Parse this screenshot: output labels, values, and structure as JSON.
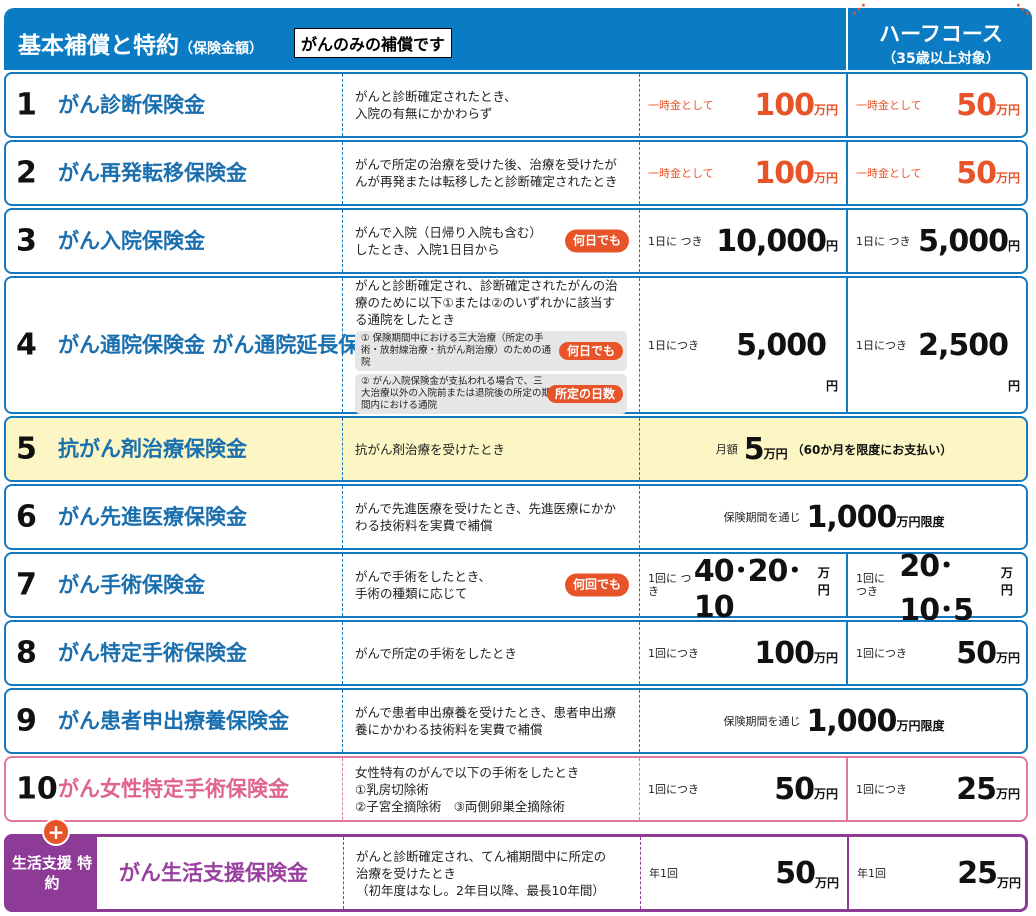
{
  "header": {
    "title": "基本補償と特約",
    "title_sub": "（保険金額）",
    "note": "がんのみの補償です",
    "half_title": "ハーフコース",
    "half_sub": "（35歳以上対象）"
  },
  "colors": {
    "header": "#0b7cc3",
    "accent": "#e8542a",
    "pink": "#e07a9c",
    "purple": "#8e3a97"
  },
  "rows": [
    {
      "num": "1",
      "name": "がん診断保険金",
      "desc": [
        "がんと診断確定されたとき、",
        "入院の有無にかかわらず"
      ],
      "orange": true,
      "c1": {
        "pre": "一時金として",
        "val": "100",
        "unit": "万円"
      },
      "c2": {
        "pre": "一時金として",
        "val": "50",
        "unit": "万円"
      }
    },
    {
      "num": "2",
      "name": "がん再発転移保険金",
      "desc": [
        "がんで所定の治療を受けた後、治療を受けたがんが再発または転移したと診断確定されたとき"
      ],
      "orange": true,
      "c1": {
        "pre": "一時金として",
        "val": "100",
        "unit": "万円"
      },
      "c2": {
        "pre": "一時金として",
        "val": "50",
        "unit": "万円"
      }
    },
    {
      "num": "3",
      "name": "がん入院保険金",
      "desc": [
        "がんで入院（日帰り入院も含む）",
        "したとき、入院1日目から"
      ],
      "badge": "何日でも",
      "c1": {
        "pre": "1日に つき",
        "val": "10,000",
        "unit": "円"
      },
      "c2": {
        "pre": "1日に つき",
        "val": "5,000",
        "unit": "円"
      }
    },
    {
      "num": "4",
      "name": "がん通院保険金 がん通院延長保険金",
      "desc": [
        "がんと診断確定され、診断確定されたがんの治療のために以下①または②のいずれかに該当する通院をしたとき"
      ],
      "subs": [
        {
          "text": "① 保険期間中における三大治療（所定の手術・放射線治療・抗がん剤治療）のための通院",
          "badge": "何日でも"
        },
        {
          "text": "② がん入院保険金が支払われる場合で、三大治療以外の入院前または退院後の所定の期間内における通院",
          "badge": "所定の日数"
        }
      ],
      "c1": {
        "pre": "1日につき",
        "val": "5,000",
        "unit": "円"
      },
      "c2": {
        "pre": "1日につき",
        "val": "2,500",
        "unit": "円"
      }
    },
    {
      "num": "5",
      "name": "抗がん剤治療保険金",
      "desc": [
        "抗がん剤治療を受けたとき"
      ],
      "style": "yellow",
      "cm": {
        "pre": "月額",
        "val": "5",
        "unit": "万円",
        "suf": "（60か月を限度にお支払い）"
      }
    },
    {
      "num": "6",
      "name": "がん先進医療保険金",
      "desc": [
        "がんで先進医療を受けたとき、先進医療にかかわる技術料を実費で補償"
      ],
      "cm": {
        "pre": "保険期間を通じ",
        "val": "1,000",
        "unit": "万円限度"
      }
    },
    {
      "num": "7",
      "name": "がん手術保険金",
      "desc": [
        "がんで手術をしたとき、",
        "手術の種類に応じて"
      ],
      "badge": "何回でも",
      "c1": {
        "pre": "1回に つき",
        "val": "40･20･10",
        "unit": "万円"
      },
      "c2": {
        "pre": "1回に つき",
        "val": "20･10･5",
        "unit": "万円"
      }
    },
    {
      "num": "8",
      "name": "がん特定手術保険金",
      "desc": [
        "がんで所定の手術をしたとき"
      ],
      "c1": {
        "pre": "1回につき",
        "val": "100",
        "unit": "万円"
      },
      "c2": {
        "pre": "1回につき",
        "val": "50",
        "unit": "万円"
      }
    },
    {
      "num": "9",
      "name": "がん患者申出療養保険金",
      "desc": [
        "がんで患者申出療養を受けたとき、患者申出療養にかかわる技術料を実費で補償"
      ],
      "cm": {
        "pre": "保険期間を通じ",
        "val": "1,000",
        "unit": "万円限度"
      }
    },
    {
      "num": "10",
      "name": "がん女性特定手術保険金",
      "desc": [
        "女性特有のがんで以下の手術をしたとき",
        "①乳房切除術",
        "②子宮全摘除術　③両側卵巣全摘除術"
      ],
      "style": "pink",
      "c1": {
        "pre": "1回につき",
        "val": "50",
        "unit": "万円"
      },
      "c2": {
        "pre": "1回につき",
        "val": "25",
        "unit": "万円"
      }
    },
    {
      "label": "生活支援 特約",
      "name": "がん生活支援保険金",
      "desc": [
        "がんと診断確定され、てん補期間中に所定の",
        "治療を受けたとき",
        "（初年度はなし。2年目以降、最長10年間）"
      ],
      "style": "purple",
      "c1": {
        "pre": "年1回",
        "val": "50",
        "unit": "万円"
      },
      "c2": {
        "pre": "年1回",
        "val": "25",
        "unit": "万円"
      }
    }
  ]
}
